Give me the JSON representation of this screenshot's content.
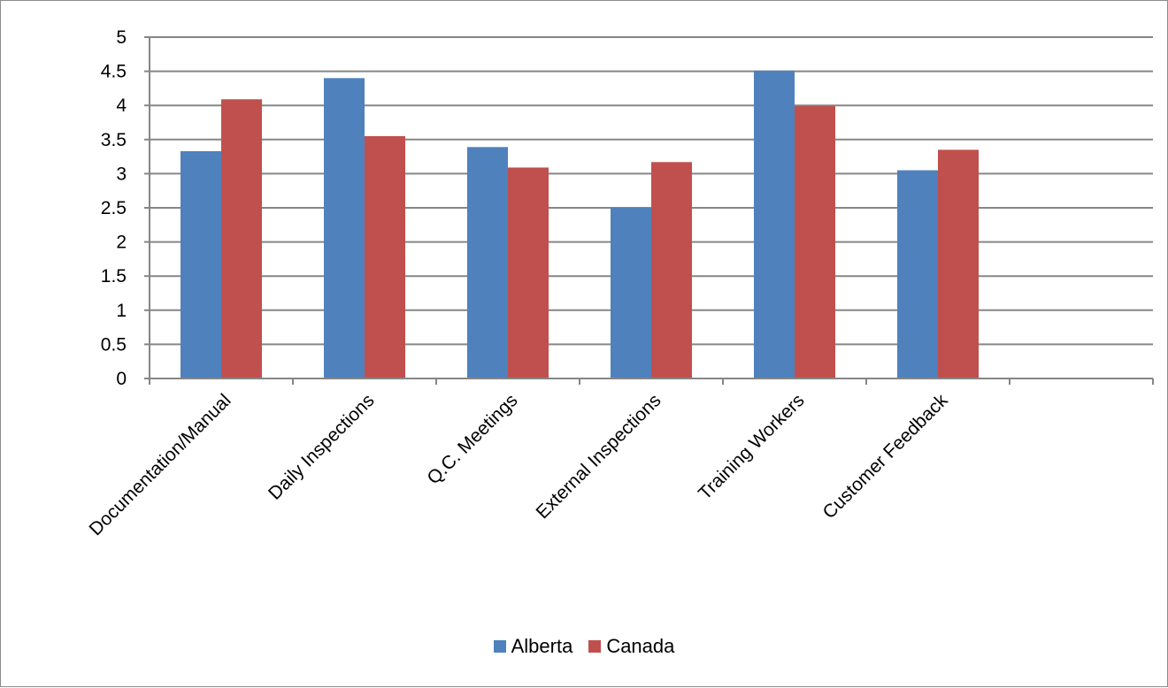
{
  "chart_data": {
    "type": "bar",
    "title": "",
    "xlabel": "",
    "ylabel": "",
    "categories": [
      "Documentation/Manual",
      "Daily Inspections",
      "Q.C. Meetings",
      "External Inspections",
      "Training Workers",
      "Customer Feedback",
      ""
    ],
    "series": [
      {
        "name": "Alberta",
        "color": "#4f81bd",
        "values": [
          3.33,
          4.4,
          3.39,
          2.5,
          4.51,
          3.05,
          null
        ]
      },
      {
        "name": "Canada",
        "color": "#c0504d",
        "values": [
          4.09,
          3.55,
          3.09,
          3.17,
          3.99,
          3.35,
          null
        ]
      }
    ],
    "ylim": [
      0,
      5
    ],
    "yticks": [
      "0",
      "0.5",
      "1",
      "1.5",
      "2",
      "2.5",
      "3",
      "3.5",
      "4",
      "4.5",
      "5"
    ],
    "grid": true,
    "legend_position": "bottom"
  }
}
